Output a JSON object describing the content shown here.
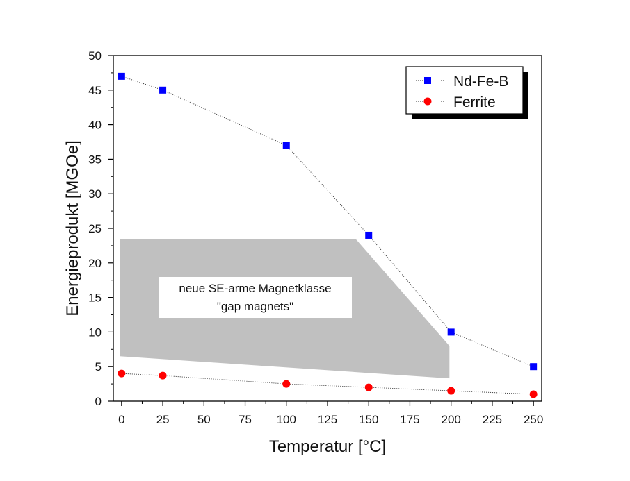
{
  "chart_data": {
    "type": "line",
    "xlabel": "Temperatur [°C]",
    "ylabel": "Energieprodukt [MGOe]",
    "xlim": [
      -5,
      255
    ],
    "ylim": [
      0,
      50
    ],
    "x_ticks": [
      0,
      25,
      50,
      75,
      100,
      125,
      150,
      175,
      200,
      225,
      250
    ],
    "y_ticks": [
      0,
      5,
      10,
      15,
      20,
      25,
      30,
      35,
      40,
      45,
      50
    ],
    "grid": false,
    "legend_position": "top-right",
    "series": [
      {
        "name": "Nd-Fe-B",
        "marker": "square",
        "color": "#0000ff",
        "line_style": "dotted",
        "x": [
          0,
          25,
          100,
          150,
          200,
          250
        ],
        "y": [
          47,
          45,
          37,
          24,
          10,
          5
        ]
      },
      {
        "name": "Ferrite",
        "marker": "circle",
        "color": "#ff0000",
        "line_style": "dotted",
        "x": [
          0,
          25,
          100,
          150,
          200,
          250
        ],
        "y": [
          4,
          3.7,
          2.5,
          2,
          1.5,
          1
        ]
      }
    ],
    "region": {
      "color": "#c0c0c0",
      "x": [
        -1,
        142,
        199,
        199,
        -1
      ],
      "y": [
        23.5,
        23.5,
        8,
        3.3,
        6.5
      ]
    },
    "annotation": {
      "lines": [
        "neue SE-arme Magnetklasse",
        "\"gap magnets\""
      ]
    }
  }
}
